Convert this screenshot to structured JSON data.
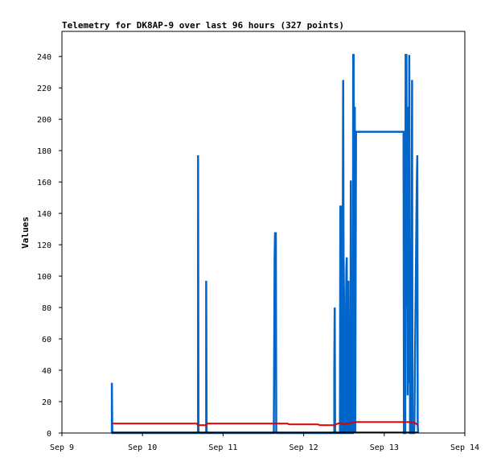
{
  "chart_data": {
    "type": "line",
    "title": "Telemetry for DK8AP-9 over last 96 hours (327 points)",
    "xlabel": "",
    "ylabel": "Values",
    "xlim": [
      "Sep 9",
      "Sep 14"
    ],
    "x_ticks": [
      "Sep 9",
      "Sep 10",
      "Sep 11",
      "Sep 12",
      "Sep 13",
      "Sep 14"
    ],
    "ylim": [
      0,
      256
    ],
    "y_ticks": [
      "0",
      "20",
      "40",
      "60",
      "80",
      "100",
      "120",
      "140",
      "160",
      "180",
      "200",
      "220",
      "240"
    ],
    "grid": false,
    "x_unit": "days since Sep 9",
    "series": [
      {
        "color": "#0066cc",
        "points": [
          [
            0.62,
            0
          ],
          [
            0.62,
            32
          ],
          [
            0.625,
            0
          ],
          [
            1.69,
            0
          ],
          [
            1.69,
            177
          ],
          [
            1.695,
            0
          ],
          [
            1.79,
            0
          ],
          [
            1.79,
            97
          ],
          [
            1.795,
            0
          ],
          [
            2.63,
            0
          ],
          [
            2.64,
            112
          ],
          [
            2.645,
            128
          ],
          [
            2.65,
            65
          ],
          [
            2.655,
            128
          ],
          [
            2.66,
            0
          ],
          [
            3.38,
            0
          ],
          [
            3.38,
            40
          ],
          [
            3.385,
            80
          ],
          [
            3.39,
            0
          ],
          [
            3.45,
            0
          ],
          [
            3.455,
            145
          ],
          [
            3.46,
            48
          ],
          [
            3.465,
            145
          ],
          [
            3.47,
            0
          ],
          [
            3.48,
            0
          ],
          [
            3.485,
            112
          ],
          [
            3.49,
            225
          ],
          [
            3.495,
            112
          ],
          [
            3.5,
            89
          ],
          [
            3.505,
            0
          ],
          [
            3.52,
            0
          ],
          [
            3.525,
            73
          ],
          [
            3.53,
            105
          ],
          [
            3.535,
            112
          ],
          [
            3.54,
            0
          ],
          [
            3.55,
            0
          ],
          [
            3.555,
            97
          ],
          [
            3.56,
            40
          ],
          [
            3.565,
            0
          ],
          [
            3.58,
            0
          ],
          [
            3.585,
            161
          ],
          [
            3.59,
            16
          ],
          [
            3.595,
            24
          ],
          [
            3.6,
            0
          ],
          [
            3.61,
            0
          ],
          [
            3.615,
            241
          ],
          [
            3.62,
            241
          ],
          [
            3.625,
            0
          ],
          [
            3.635,
            208
          ],
          [
            3.64,
            0
          ],
          [
            3.65,
            192
          ],
          [
            4.24,
            192
          ],
          [
            4.245,
            0
          ],
          [
            4.26,
            0
          ],
          [
            4.265,
            241
          ],
          [
            4.27,
            241
          ],
          [
            4.275,
            241
          ],
          [
            4.28,
            80
          ],
          [
            4.285,
            152
          ],
          [
            4.29,
            24
          ],
          [
            4.295,
            176
          ],
          [
            4.3,
            208
          ],
          [
            4.305,
            32
          ],
          [
            4.31,
            241
          ],
          [
            4.315,
            120
          ],
          [
            4.32,
            0
          ],
          [
            4.335,
            0
          ],
          [
            4.34,
            112
          ],
          [
            4.345,
            225
          ],
          [
            4.35,
            0
          ],
          [
            4.37,
            0
          ],
          [
            4.375,
            8
          ],
          [
            4.38,
            40
          ],
          [
            4.385,
            64
          ],
          [
            4.39,
            89
          ],
          [
            4.395,
            114
          ],
          [
            4.4,
            140
          ],
          [
            4.405,
            163
          ],
          [
            4.41,
            177
          ],
          [
            4.415,
            5
          ],
          [
            4.42,
            0
          ]
        ]
      },
      {
        "color": "#dd0000",
        "points": [
          [
            0.62,
            6
          ],
          [
            1.67,
            6
          ],
          [
            1.69,
            5
          ],
          [
            1.79,
            5
          ],
          [
            1.8,
            6
          ],
          [
            2.8,
            6
          ],
          [
            2.82,
            5.5
          ],
          [
            3.18,
            5.5
          ],
          [
            3.2,
            5
          ],
          [
            3.38,
            5
          ],
          [
            3.4,
            5.5
          ],
          [
            3.45,
            6.5
          ],
          [
            3.5,
            5.5
          ],
          [
            3.65,
            7
          ],
          [
            4.3,
            7
          ],
          [
            4.38,
            6.5
          ],
          [
            4.42,
            5
          ]
        ]
      },
      {
        "color": "#000000",
        "points": [
          [
            0.62,
            0.3
          ],
          [
            4.42,
            0.3
          ]
        ]
      }
    ]
  }
}
